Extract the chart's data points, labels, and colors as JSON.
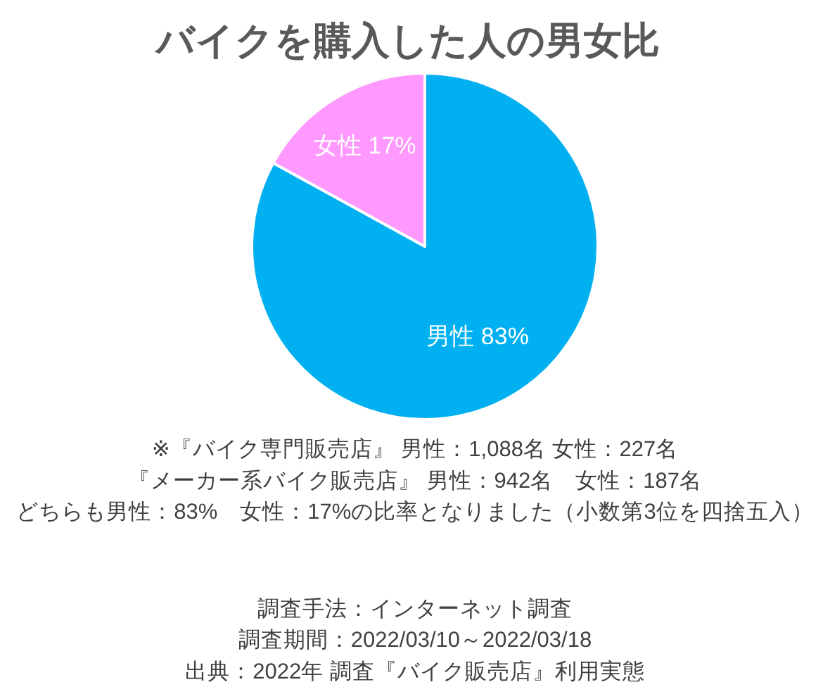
{
  "chart_data": {
    "type": "pie",
    "title": "バイクを購入した人の男女比",
    "categories": [
      "男性",
      "女性"
    ],
    "values": [
      83,
      17
    ],
    "colors": [
      "#00b0f0",
      "#ff99ff"
    ],
    "value_labels": [
      "83%",
      "17%"
    ],
    "annotations": [
      "※『バイク専門販売店』 男性：1,088名 女性：227名",
      "『メーカー系バイク販売店』 男性：942名　女性：187名",
      "どちらも男性：83%　女性：17%の比率となりました（小数第3位を四捨五入）",
      "調査手法：インターネット調査",
      "調査期間：2022/03/10～2022/03/18",
      "出典：2022年 調査『バイク販売店』利用実態"
    ]
  }
}
